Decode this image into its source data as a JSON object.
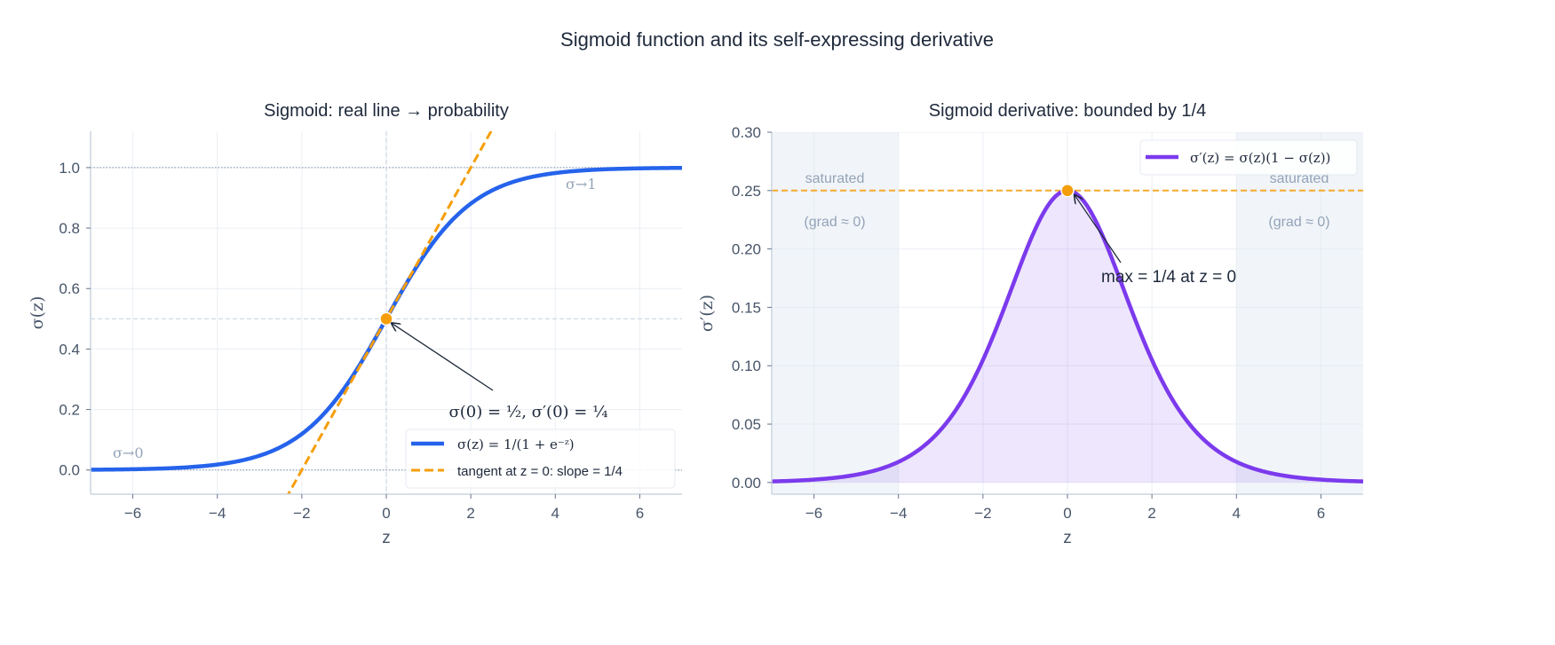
{
  "figure": {
    "suptitle": "Sigmoid function and its self-expressing derivative"
  },
  "colors": {
    "sigmoid": "#2563eb",
    "tangent": "#f59e0b",
    "derivative": "#7c3aed",
    "marker": "#f59e0b",
    "saturated_band": "#f1f5f9"
  },
  "chart_data": [
    {
      "type": "line",
      "title": "Sigmoid: real line → probability",
      "xlabel": "z",
      "ylabel": "σ(z)",
      "xlim": [
        -7,
        7
      ],
      "ylim": [
        -0.08,
        1.12
      ],
      "xticks": [
        -6,
        -4,
        -2,
        0,
        2,
        4,
        6
      ],
      "xtick_labels": [
        "−6",
        "−4",
        "−2",
        "0",
        "2",
        "4",
        "6"
      ],
      "yticks": [
        0.0,
        0.2,
        0.4,
        0.6,
        0.8,
        1.0
      ],
      "ytick_labels": [
        "0.0",
        "0.2",
        "0.4",
        "0.6",
        "0.8",
        "1.0"
      ],
      "grid": true,
      "series": [
        {
          "name": "σ(z) = 1/(1 + e⁻ᶻ)",
          "function": "1/(1+exp(-z))",
          "style": "solid"
        },
        {
          "name": "tangent at z = 0: slope = 1/4",
          "function": "0.5 + z/4",
          "style": "dashed"
        }
      ],
      "reference_lines": {
        "horizontal_dotted": [
          0.0,
          1.0
        ],
        "horizontal_dashed": [
          0.5
        ],
        "vertical_dashed": [
          0
        ]
      },
      "marker": {
        "x": 0,
        "y": 0.5
      },
      "annotations": [
        {
          "text": "σ(0) = ½,  σ′(0) = ¼",
          "x": 0,
          "y": 0.5
        },
        {
          "text": "σ→1"
        },
        {
          "text": "σ→0"
        }
      ],
      "legend": "lower-right"
    },
    {
      "type": "area",
      "title": "Sigmoid derivative: bounded by 1/4",
      "xlabel": "z",
      "ylabel": "σ′(z)",
      "xlim": [
        -7,
        7
      ],
      "ylim": [
        -0.01,
        0.3
      ],
      "xticks": [
        -6,
        -4,
        -2,
        0,
        2,
        4,
        6
      ],
      "xtick_labels": [
        "−6",
        "−4",
        "−2",
        "0",
        "2",
        "4",
        "6"
      ],
      "yticks": [
        0.0,
        0.05,
        0.1,
        0.15,
        0.2,
        0.25,
        0.3
      ],
      "ytick_labels": [
        "0.00",
        "0.05",
        "0.10",
        "0.15",
        "0.20",
        "0.25",
        "0.30"
      ],
      "grid": true,
      "series": [
        {
          "name": "σ′(z) = σ(z)(1 − σ(z))",
          "function": "s(z)*(1-s(z))",
          "style": "solid",
          "filled": true
        }
      ],
      "reference_lines": {
        "horizontal_dashed": [
          0.25
        ]
      },
      "shaded_regions": [
        [
          -7,
          -4
        ],
        [
          4,
          7
        ]
      ],
      "marker": {
        "x": 0,
        "y": 0.25
      },
      "annotations": [
        {
          "text": "max  = 1/4 at z = 0",
          "x": 0,
          "y": 0.25
        },
        {
          "text": "saturated",
          "line2": "(grad ≈ 0)"
        },
        {
          "text": "saturated",
          "line2": "(grad ≈ 0)"
        }
      ],
      "legend": "upper-right"
    }
  ]
}
